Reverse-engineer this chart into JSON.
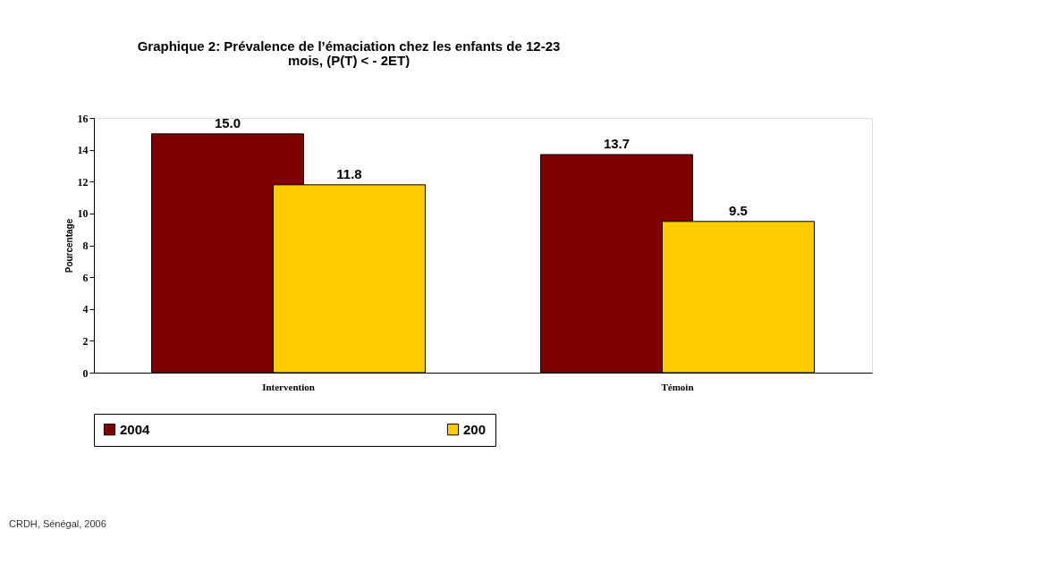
{
  "chart_data": {
    "type": "bar",
    "title": "Graphique 2: Prévalence de l’émaciation chez les enfants de 12-23\nmois, (P(T) < - 2ET)",
    "ylabel": "Pourcentage",
    "categories": [
      "Intervention",
      "Témoin"
    ],
    "series": [
      {
        "name": "2004",
        "color": "#800000",
        "values": [
          15.0,
          13.7
        ],
        "value_labels": [
          "15.0",
          "13.7"
        ]
      },
      {
        "name": "200",
        "color": "#ffcc00",
        "values": [
          11.8,
          9.5
        ],
        "value_labels": [
          "11.8",
          "9.5"
        ]
      }
    ],
    "ylim": [
      0,
      16
    ],
    "yticks": [
      0,
      2,
      4,
      6,
      8,
      10,
      12,
      14,
      16
    ],
    "grid": false,
    "legend": "bottom",
    "annotations": [
      "CRDH, Sénégal, 2006"
    ]
  }
}
